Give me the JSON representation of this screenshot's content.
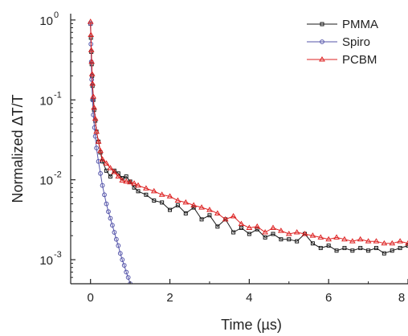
{
  "chart_data": {
    "type": "line",
    "xlabel": "Time (µs)",
    "ylabel": "Normalized ΔT/T",
    "y_scale": "log",
    "xlim": [
      -0.5,
      8
    ],
    "ylim": [
      0.0005,
      1.2
    ],
    "x_ticks": [
      {
        "value": 0,
        "label": "0"
      },
      {
        "value": 2,
        "label": "2"
      },
      {
        "value": 4,
        "label": "4"
      },
      {
        "value": 6,
        "label": "6"
      },
      {
        "value": 8,
        "label": "8"
      }
    ],
    "y_ticks": [
      {
        "value": 0.001,
        "base": "10",
        "exp": "-3"
      },
      {
        "value": 0.01,
        "base": "10",
        "exp": "-2"
      },
      {
        "value": 0.1,
        "base": "10",
        "exp": "-1"
      },
      {
        "value": 1,
        "base": "10",
        "exp": "0"
      }
    ],
    "legend_position": "top-right",
    "grid": false,
    "series": [
      {
        "name": "PMMA",
        "color": "#1a1a1a",
        "marker": "square",
        "x": [
          0.0,
          0.01,
          0.02,
          0.03,
          0.04,
          0.05,
          0.07,
          0.09,
          0.12,
          0.15,
          0.2,
          0.25,
          0.3,
          0.4,
          0.5,
          0.6,
          0.7,
          0.8,
          0.9,
          1.0,
          1.1,
          1.2,
          1.4,
          1.6,
          1.8,
          2.0,
          2.2,
          2.4,
          2.6,
          2.8,
          3.0,
          3.2,
          3.4,
          3.6,
          3.8,
          4.0,
          4.2,
          4.4,
          4.6,
          4.8,
          5.0,
          5.2,
          5.4,
          5.6,
          5.8,
          6.0,
          6.2,
          6.4,
          6.6,
          6.8,
          7.0,
          7.2,
          7.4,
          7.6,
          7.8,
          8.0
        ],
        "y": [
          0.9,
          0.6,
          0.4,
          0.28,
          0.2,
          0.15,
          0.1,
          0.075,
          0.055,
          0.04,
          0.03,
          0.022,
          0.017,
          0.013,
          0.011,
          0.013,
          0.012,
          0.0105,
          0.011,
          0.0095,
          0.008,
          0.0072,
          0.0065,
          0.0055,
          0.0052,
          0.0042,
          0.0048,
          0.0038,
          0.0045,
          0.0032,
          0.0036,
          0.0026,
          0.0032,
          0.0022,
          0.0025,
          0.0021,
          0.0024,
          0.0019,
          0.0021,
          0.0018,
          0.0018,
          0.0017,
          0.0021,
          0.0016,
          0.0014,
          0.0015,
          0.0013,
          0.0014,
          0.0013,
          0.0014,
          0.0013,
          0.0014,
          0.0012,
          0.0013,
          0.0014,
          0.0015
        ]
      },
      {
        "name": "Spiro",
        "color": "#5555aa",
        "marker": "circle",
        "x": [
          0.0,
          0.01,
          0.02,
          0.03,
          0.05,
          0.07,
          0.1,
          0.12,
          0.15,
          0.2,
          0.25,
          0.3,
          0.35,
          0.4,
          0.45,
          0.5,
          0.55,
          0.6,
          0.65,
          0.7,
          0.75,
          0.8,
          0.85,
          0.9,
          0.95,
          1.0
        ],
        "y": [
          0.9,
          0.5,
          0.3,
          0.18,
          0.1,
          0.065,
          0.045,
          0.035,
          0.025,
          0.017,
          0.012,
          0.0085,
          0.0065,
          0.005,
          0.004,
          0.0033,
          0.0027,
          0.0022,
          0.0018,
          0.0015,
          0.0012,
          0.001,
          0.00085,
          0.0007,
          0.0006,
          0.0005
        ]
      },
      {
        "name": "PCBM",
        "color": "#dd2222",
        "marker": "triangle",
        "x": [
          0.0,
          0.01,
          0.02,
          0.03,
          0.04,
          0.05,
          0.07,
          0.09,
          0.12,
          0.15,
          0.2,
          0.25,
          0.3,
          0.4,
          0.5,
          0.6,
          0.7,
          0.8,
          0.9,
          1.0,
          1.1,
          1.2,
          1.4,
          1.6,
          1.8,
          2.0,
          2.2,
          2.4,
          2.6,
          2.8,
          3.0,
          3.2,
          3.4,
          3.6,
          3.8,
          4.0,
          4.2,
          4.4,
          4.6,
          4.8,
          5.0,
          5.2,
          5.4,
          5.6,
          5.8,
          6.0,
          6.2,
          6.4,
          6.6,
          6.8,
          7.0,
          7.2,
          7.4,
          7.6,
          7.8,
          8.0
        ],
        "y": [
          0.95,
          0.65,
          0.42,
          0.3,
          0.21,
          0.16,
          0.11,
          0.08,
          0.058,
          0.04,
          0.03,
          0.023,
          0.018,
          0.016,
          0.014,
          0.0125,
          0.011,
          0.0098,
          0.0095,
          0.0093,
          0.009,
          0.0085,
          0.0078,
          0.0072,
          0.0065,
          0.0062,
          0.0055,
          0.0052,
          0.0048,
          0.0045,
          0.0042,
          0.0038,
          0.0032,
          0.0035,
          0.0028,
          0.0025,
          0.0026,
          0.0022,
          0.0025,
          0.0023,
          0.0021,
          0.0022,
          0.0021,
          0.002,
          0.0019,
          0.0018,
          0.0019,
          0.0018,
          0.0017,
          0.0018,
          0.0017,
          0.0017,
          0.0016,
          0.0016,
          0.0017,
          0.0016
        ]
      }
    ]
  }
}
